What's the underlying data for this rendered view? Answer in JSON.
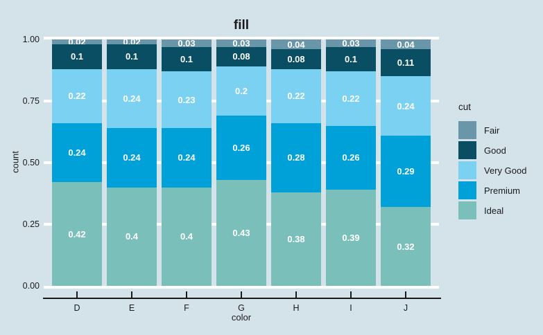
{
  "background_color": "#d4e2ea",
  "gridline_color": "#ffffff",
  "text_color": "#1a1a1a",
  "bar_label_color": "#ffffff",
  "chart_data": {
    "type": "bar",
    "variant": "stacked-normalized",
    "title": "fill",
    "xlabel": "color",
    "ylabel": "count",
    "legend_title": "cut",
    "legend_position": "right",
    "grid": "horizontal-white-major",
    "ylim": [
      0,
      1
    ],
    "yticks": [
      {
        "value": 1.0,
        "label": "1.00"
      },
      {
        "value": 0.75,
        "label": "0.75"
      },
      {
        "value": 0.5,
        "label": "0.50"
      },
      {
        "value": 0.25,
        "label": "0.25"
      },
      {
        "value": 0.0,
        "label": "0.00"
      }
    ],
    "categories": [
      "D",
      "E",
      "F",
      "G",
      "H",
      "I",
      "J"
    ],
    "stack_order_bottom_to_top": [
      "Ideal",
      "Premium",
      "Very Good",
      "Good",
      "Fair"
    ],
    "series": [
      {
        "name": "Fair",
        "color": "#6a96aa",
        "values": [
          0.02,
          0.02,
          0.03,
          0.03,
          0.04,
          0.03,
          0.04
        ]
      },
      {
        "name": "Good",
        "color": "#0a4e63",
        "values": [
          0.1,
          0.1,
          0.1,
          0.08,
          0.08,
          0.1,
          0.11
        ]
      },
      {
        "name": "Very Good",
        "color": "#7bd1f2",
        "values": [
          0.22,
          0.24,
          0.23,
          0.2,
          0.22,
          0.22,
          0.24
        ]
      },
      {
        "name": "Premium",
        "color": "#00a0d8",
        "values": [
          0.24,
          0.24,
          0.24,
          0.26,
          0.28,
          0.26,
          0.29
        ]
      },
      {
        "name": "Ideal",
        "color": "#7bbfba",
        "values": [
          0.42,
          0.4,
          0.4,
          0.43,
          0.38,
          0.39,
          0.32
        ]
      }
    ]
  }
}
